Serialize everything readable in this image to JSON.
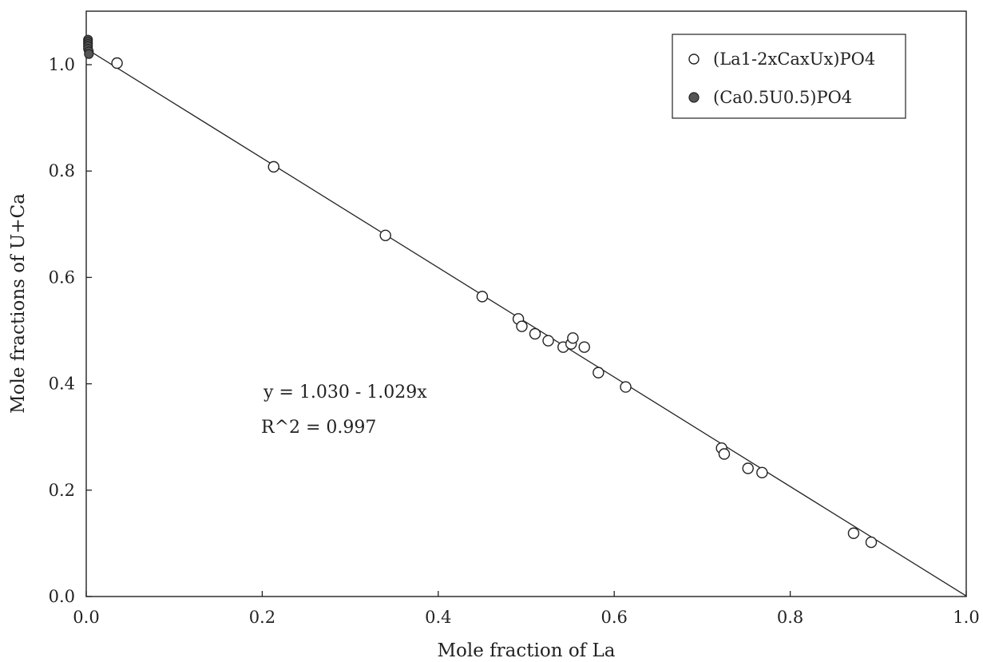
{
  "chart_data": {
    "type": "scatter",
    "title": "",
    "xlabel": "Mole fraction of La",
    "ylabel": "Mole fractions of U+Ca",
    "xlim": [
      0.0,
      1.0
    ],
    "ylim": [
      0.0,
      1.1
    ],
    "xticks": [
      "0.0",
      "0.2",
      "0.4",
      "0.6",
      "0.8",
      "1.0"
    ],
    "yticks": [
      "0.0",
      "0.2",
      "0.4",
      "0.6",
      "0.8",
      "1.0"
    ],
    "grid": false,
    "legend_position": "top-right",
    "series": [
      {
        "name": "(La1-2xCaxUx)PO4",
        "marker": "open-circle",
        "color": "#222222",
        "points": [
          {
            "x": 0.035,
            "y": 1.003
          },
          {
            "x": 0.213,
            "y": 0.808
          },
          {
            "x": 0.34,
            "y": 0.679
          },
          {
            "x": 0.45,
            "y": 0.564
          },
          {
            "x": 0.491,
            "y": 0.522
          },
          {
            "x": 0.495,
            "y": 0.508
          },
          {
            "x": 0.51,
            "y": 0.494
          },
          {
            "x": 0.525,
            "y": 0.481
          },
          {
            "x": 0.542,
            "y": 0.469
          },
          {
            "x": 0.551,
            "y": 0.475
          },
          {
            "x": 0.553,
            "y": 0.486
          },
          {
            "x": 0.566,
            "y": 0.469
          },
          {
            "x": 0.582,
            "y": 0.421
          },
          {
            "x": 0.613,
            "y": 0.394
          },
          {
            "x": 0.722,
            "y": 0.279
          },
          {
            "x": 0.725,
            "y": 0.268
          },
          {
            "x": 0.752,
            "y": 0.241
          },
          {
            "x": 0.768,
            "y": 0.233
          },
          {
            "x": 0.872,
            "y": 0.119
          },
          {
            "x": 0.892,
            "y": 0.102
          }
        ]
      },
      {
        "name": "(Ca0.5U0.5)PO4",
        "marker": "filled-circle",
        "color": "#555555",
        "points": [
          {
            "x": 0.002,
            "y": 1.047
          },
          {
            "x": 0.002,
            "y": 1.043
          },
          {
            "x": 0.002,
            "y": 1.039
          },
          {
            "x": 0.002,
            "y": 1.035
          },
          {
            "x": 0.002,
            "y": 1.03
          },
          {
            "x": 0.003,
            "y": 1.025
          },
          {
            "x": 0.003,
            "y": 1.02
          }
        ]
      }
    ],
    "fit_line": {
      "intercept": 1.03,
      "slope": -1.029
    },
    "annotations": {
      "equation": "y = 1.030 - 1.029x",
      "r_squared": "R^2 = 0.997"
    },
    "legend": {
      "items": [
        {
          "label": "(La1-2xCaxUx)PO4",
          "marker": "open-circle"
        },
        {
          "label": "(Ca0.5U0.5)PO4",
          "marker": "filled-circle"
        }
      ]
    }
  }
}
